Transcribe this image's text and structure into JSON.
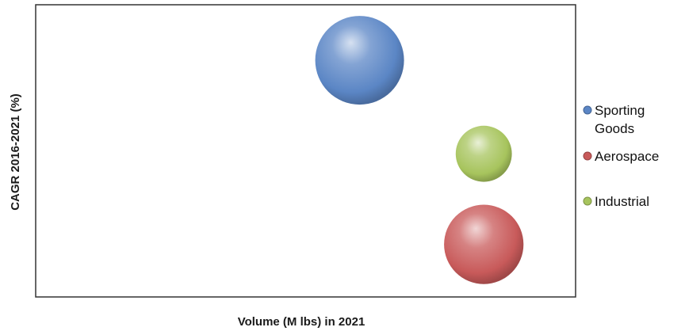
{
  "chart_data": {
    "type": "bubble",
    "title": "",
    "xlabel": "Volume (M lbs) in 2021",
    "ylabel": "CAGR 2016-2021 (%)",
    "xlim": [
      0,
      100
    ],
    "ylim": [
      0,
      100
    ],
    "xticks_visible": false,
    "yticks_visible": false,
    "grid": false,
    "legend_position": "right",
    "series": [
      {
        "name": "Sporting Goods",
        "color": "#5b86c5",
        "x": 60,
        "y": 81,
        "size": 100
      },
      {
        "name": "Aerospace",
        "color": "#c85a5a",
        "x": 83,
        "y": 18,
        "size": 80
      },
      {
        "name": "Industrial",
        "color": "#a7c45d",
        "x": 83,
        "y": 49,
        "size": 40
      }
    ]
  },
  "legend": {
    "items": [
      {
        "line1": "Sporting",
        "line2": "Goods",
        "color": "#5b86c5"
      },
      {
        "line1": "Aerospace",
        "line2": "",
        "color": "#c85a5a"
      },
      {
        "line1": "Industrial",
        "line2": "",
        "color": "#a7c45d"
      }
    ]
  }
}
